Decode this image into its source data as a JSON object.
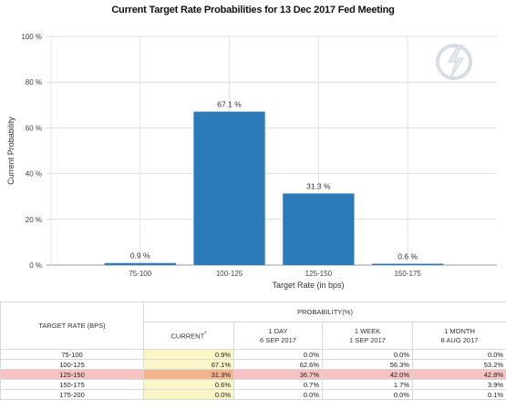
{
  "chart_data": {
    "type": "bar",
    "title": "Current Target Rate Probabilities for 13 Dec 2017 Fed Meeting",
    "xlabel": "Target Rate (in bps)",
    "ylabel": "Current Probability",
    "categories": [
      "75-100",
      "100-125",
      "125-150",
      "150-175"
    ],
    "values": [
      0.9,
      67.1,
      31.3,
      0.6
    ],
    "value_labels": [
      "0.9 %",
      "67.1 %",
      "31.3 %",
      "0.6 %"
    ],
    "ylim": [
      0,
      100
    ],
    "yticks": [
      0,
      20,
      40,
      60,
      80,
      100
    ],
    "ytick_labels": [
      "0 %",
      "20 %",
      "40 %",
      "60 %",
      "80 %",
      "100 %"
    ],
    "grid": true,
    "bar_color": "#2b7bba",
    "legend": "none"
  },
  "table": {
    "target_header": "TARGET RATE (BPS)",
    "probability_header": "PROBABILITY(%)",
    "columns": [
      {
        "line1": "CURRENT",
        "line2": "",
        "star": "*"
      },
      {
        "line1": "1 DAY",
        "line2": "6 SEP 2017",
        "star": ""
      },
      {
        "line1": "1 WEEK",
        "line2": "1 SEP 2017",
        "star": ""
      },
      {
        "line1": "1 MONTH",
        "line2": "8 AUG 2017",
        "star": ""
      }
    ],
    "rows": [
      {
        "rate": "75-100",
        "values": [
          "0.9%",
          "0.0%",
          "0.0%",
          "0.0%"
        ],
        "highlight": false
      },
      {
        "rate": "100-125",
        "values": [
          "67.1%",
          "62.6%",
          "56.3%",
          "53.2%"
        ],
        "highlight": false
      },
      {
        "rate": "125-150",
        "values": [
          "31.3%",
          "36.7%",
          "42.0%",
          "42.8%"
        ],
        "highlight": true
      },
      {
        "rate": "150-175",
        "values": [
          "0.6%",
          "0.7%",
          "1.7%",
          "3.9%"
        ],
        "highlight": false
      },
      {
        "rate": "175-200",
        "values": [
          "0.0%",
          "0.0%",
          "0.0%",
          "0.1%"
        ],
        "highlight": false
      }
    ],
    "highlight_color": "#f6c2c2",
    "current_color": "#fbf6c6"
  },
  "watermark_icon": "quickstrike-logo-icon"
}
